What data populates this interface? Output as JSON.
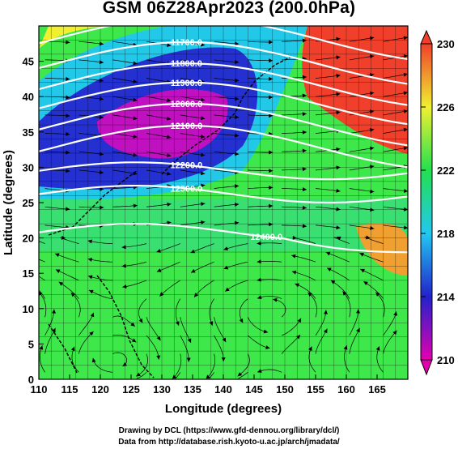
{
  "title": "GSM 06Z28Apr2023 (200.0hPa)",
  "credits": {
    "line1": "Drawing by DCL (https://www.gfd-dennou.org/library/dcl/)",
    "line2": "Data from http://database.rish.kyoto-u.ac.jp/arch/jmadata/"
  },
  "map": {
    "x_axis": {
      "label": "Longitude (degrees)",
      "range": [
        110,
        170
      ],
      "ticks": [
        "110",
        "115",
        "120",
        "125",
        "130",
        "135",
        "140",
        "145",
        "150",
        "155",
        "160",
        "165"
      ]
    },
    "y_axis": {
      "label": "Latitude (degrees)",
      "range": [
        0,
        50
      ],
      "ticks": [
        "0",
        "5",
        "10",
        "15",
        "20",
        "25",
        "30",
        "35",
        "40",
        "45"
      ]
    },
    "colorbar": {
      "min": 210,
      "max": 230,
      "tick_labels": [
        "230",
        "226",
        "222",
        "218",
        "214",
        "210"
      ],
      "colors": [
        "#e400b0",
        "#2222cc",
        "#22c8f0",
        "#22e050",
        "#f0f030",
        "#f0402c"
      ]
    },
    "contours": [
      {
        "label": "11600.0",
        "lat": 48.0
      },
      {
        "label": "11700.0",
        "lat": 44.5
      },
      {
        "label": "11800.0",
        "lat": 41.5
      },
      {
        "label": "11900.0",
        "lat": 38.8
      },
      {
        "label": "12000.0",
        "lat": 35.8
      },
      {
        "label": "12100.0",
        "lat": 32.7
      },
      {
        "label": "12200.0",
        "lat": 29.5
      },
      {
        "label": "12300.0",
        "lat": 26.2
      },
      {
        "label": "12400.0",
        "lat": 20.8
      }
    ]
  }
}
